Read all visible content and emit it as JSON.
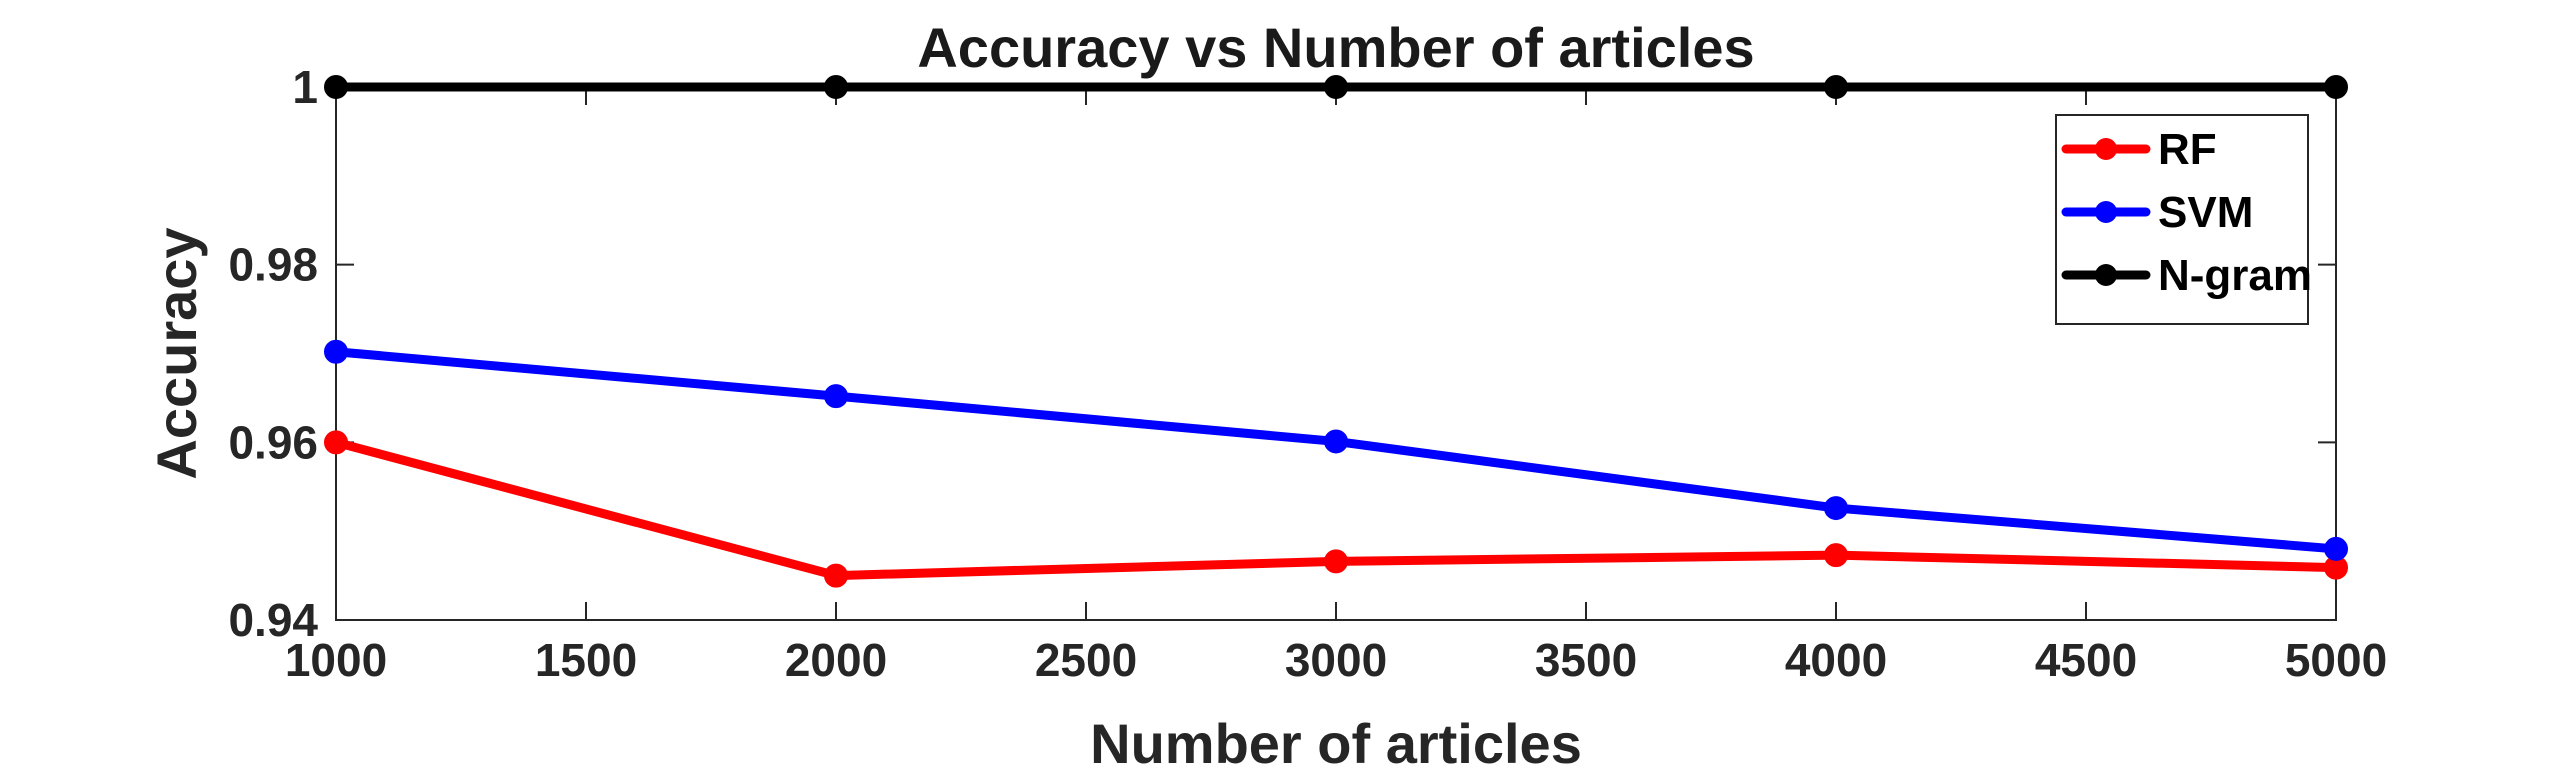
{
  "chart_data": {
    "type": "line",
    "title": "Accuracy vs Number of articles",
    "xlabel": "Number of articles",
    "ylabel": "Accuracy",
    "x": [
      1000,
      2000,
      3000,
      4000,
      5000
    ],
    "xlim": [
      1000,
      5000
    ],
    "ylim": [
      0.94,
      1.0
    ],
    "xticks": [
      1000,
      1500,
      2000,
      2500,
      3000,
      3500,
      4000,
      4500,
      5000
    ],
    "xtick_labels": [
      "1000",
      "1500",
      "2000",
      "2500",
      "3000",
      "3500",
      "4000",
      "4500",
      "5000"
    ],
    "yticks": [
      0.94,
      0.96,
      0.98,
      1.0
    ],
    "ytick_labels": [
      "0.94",
      "0.96",
      "0.98",
      "1"
    ],
    "grid": false,
    "legend_position": "top-right",
    "series": [
      {
        "name": "RF",
        "color": "#ff0000",
        "values": [
          0.96,
          0.945,
          0.9466,
          0.9473,
          0.9459
        ]
      },
      {
        "name": "SVM",
        "color": "#0000ff",
        "values": [
          0.9702,
          0.9652,
          0.9601,
          0.9526,
          0.948
        ]
      },
      {
        "name": "N-gram",
        "color": "#000000",
        "values": [
          1.0,
          1.0,
          1.0,
          1.0,
          1.0
        ]
      }
    ]
  }
}
